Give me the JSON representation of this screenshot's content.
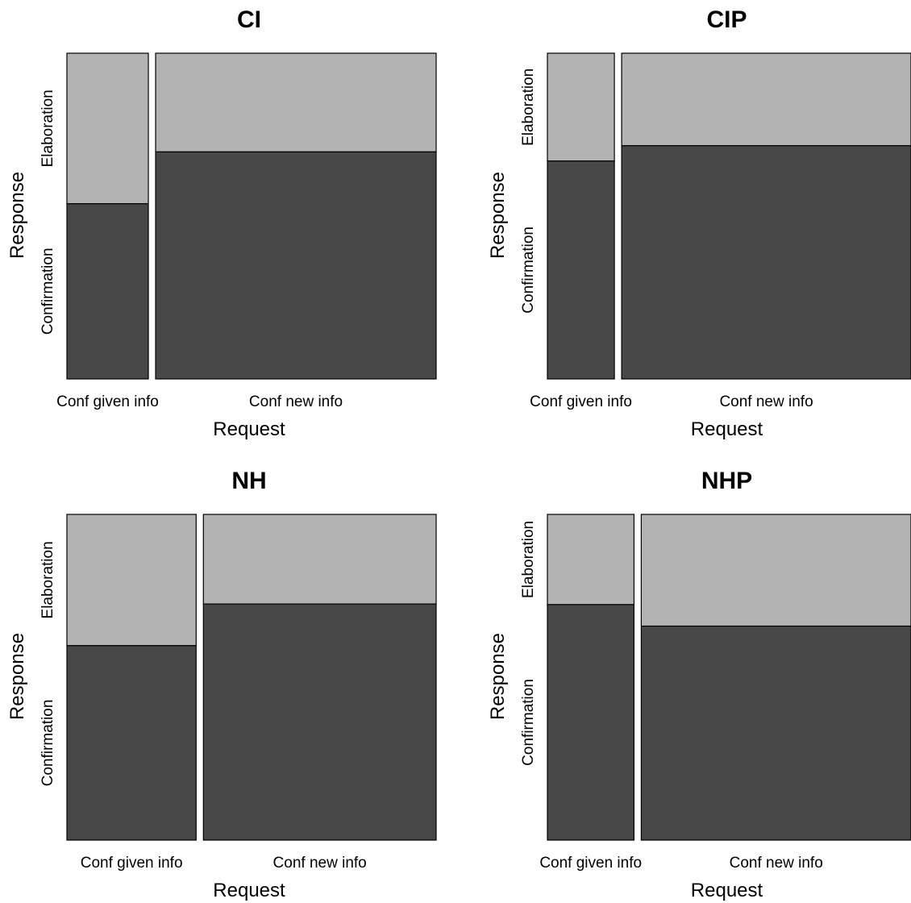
{
  "colors": {
    "confirmation": "#484848",
    "elaboration": "#b3b3b3",
    "border": "#000000"
  },
  "chart_data": [
    {
      "type": "mosaic",
      "title": "CI",
      "xlabel": "Request",
      "ylabel": "Response",
      "x_categories": [
        "Conf given info",
        "Conf new info"
      ],
      "y_categories": [
        "Confirmation",
        "Elaboration"
      ],
      "x_proportions": [
        0.225,
        0.775
      ],
      "conditional_y_proportions": [
        [
          0.538,
          0.462
        ],
        [
          0.697,
          0.303
        ]
      ]
    },
    {
      "type": "mosaic",
      "title": "CIP",
      "xlabel": "Request",
      "ylabel": "Response",
      "x_categories": [
        "Conf given info",
        "Conf new info"
      ],
      "y_categories": [
        "Confirmation",
        "Elaboration"
      ],
      "x_proportions": [
        0.188,
        0.812
      ],
      "conditional_y_proportions": [
        [
          0.669,
          0.331
        ],
        [
          0.716,
          0.284
        ]
      ]
    },
    {
      "type": "mosaic",
      "title": "NH",
      "xlabel": "Request",
      "ylabel": "Response",
      "x_categories": [
        "Conf given info",
        "Conf new info"
      ],
      "y_categories": [
        "Confirmation",
        "Elaboration"
      ],
      "x_proportions": [
        0.357,
        0.643
      ],
      "conditional_y_proportions": [
        [
          0.597,
          0.403
        ],
        [
          0.725,
          0.275
        ]
      ]
    },
    {
      "type": "mosaic",
      "title": "NHP",
      "xlabel": "Request",
      "ylabel": "Response",
      "x_categories": [
        "Conf given info",
        "Conf new info"
      ],
      "y_categories": [
        "Confirmation",
        "Elaboration"
      ],
      "x_proportions": [
        0.243,
        0.757
      ],
      "conditional_y_proportions": [
        [
          0.723,
          0.277
        ],
        [
          0.657,
          0.343
        ]
      ]
    }
  ]
}
